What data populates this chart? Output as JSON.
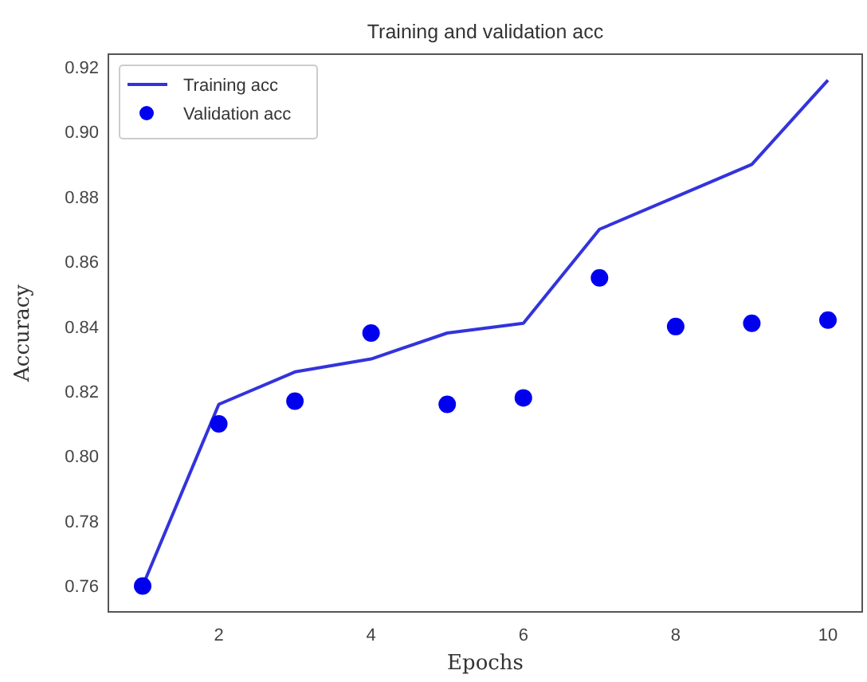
{
  "chart_data": {
    "type": "line",
    "title": "Training and validation acc",
    "xlabel": "Epochs",
    "ylabel": "Accuracy",
    "x": [
      1,
      2,
      3,
      4,
      5,
      6,
      7,
      8,
      9,
      10
    ],
    "series": [
      {
        "name": "Training acc",
        "color": "#3333dd",
        "type": "line",
        "marker": "none",
        "line_style": "solid",
        "values": [
          0.76,
          0.816,
          0.826,
          0.83,
          0.838,
          0.841,
          0.87,
          0.88,
          0.89,
          0.916
        ]
      },
      {
        "name": "Validation acc",
        "color": "#0000ee",
        "type": "scatter",
        "marker": "circle",
        "values": [
          0.76,
          0.81,
          0.817,
          0.838,
          0.816,
          0.818,
          0.855,
          0.84,
          0.841,
          0.842
        ]
      }
    ],
    "xlim": [
      0.55,
      10.45
    ],
    "ylim": [
      0.752,
      0.924
    ],
    "xticks": [
      2,
      4,
      6,
      8,
      10
    ],
    "yticks": [
      {
        "value": 0.76,
        "label": "0.76"
      },
      {
        "value": 0.78,
        "label": "0.78"
      },
      {
        "value": 0.8,
        "label": "0.80"
      },
      {
        "value": 0.82,
        "label": "0.82"
      },
      {
        "value": 0.84,
        "label": "0.84"
      },
      {
        "value": 0.86,
        "label": "0.86"
      },
      {
        "value": 0.88,
        "label": "0.88"
      },
      {
        "value": 0.9,
        "label": "0.90"
      },
      {
        "value": 0.92,
        "label": "0.92"
      }
    ],
    "grid": false,
    "legend": "top left"
  }
}
